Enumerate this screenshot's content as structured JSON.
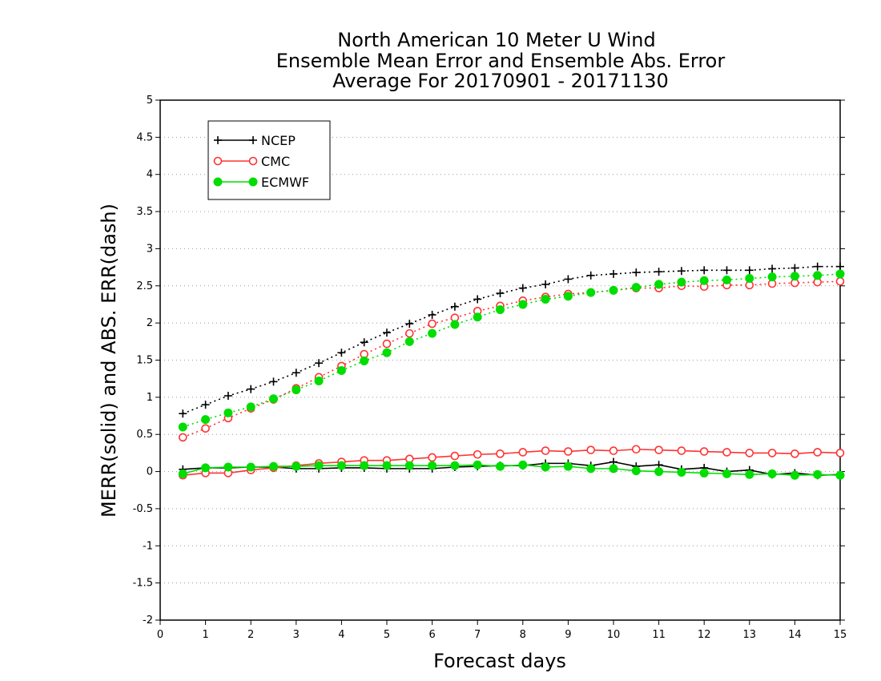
{
  "chart_data": {
    "type": "line",
    "title": [
      "North American 10 Meter U Wind",
      "Ensemble Mean Error and Ensemble Abs. Error",
      "Average For 20170901 - 20171130"
    ],
    "xlabel": "Forecast days",
    "ylabel": "MERR(solid) and ABS. ERR(dash)",
    "xlim": [
      0,
      15
    ],
    "ylim": [
      -2,
      5
    ],
    "xticks": [
      0,
      1,
      2,
      3,
      4,
      5,
      6,
      7,
      8,
      9,
      10,
      11,
      12,
      13,
      14,
      15
    ],
    "xtick_labels": [
      "0",
      "1",
      "2",
      "3",
      "4",
      "5",
      "6",
      "7",
      "8",
      "9",
      "10",
      "11",
      "12",
      "13",
      "14",
      "15"
    ],
    "yticks": [
      -2,
      -1.5,
      -1,
      -0.5,
      0,
      0.5,
      1,
      1.5,
      2,
      2.5,
      3,
      3.5,
      4,
      4.5,
      5
    ],
    "ytick_labels": [
      "-2",
      "-1.5",
      "-1",
      "-0.5",
      "0",
      "0.5",
      "1",
      "1.5",
      "2",
      "2.5",
      "3",
      "3.5",
      "4",
      "4.5",
      "5"
    ],
    "grid": "horizontal dotted",
    "legend_position": "top-left",
    "x": [
      0.5,
      1,
      1.5,
      2,
      2.5,
      3,
      3.5,
      4,
      4.5,
      5,
      5.5,
      6,
      6.5,
      7,
      7.5,
      8,
      8.5,
      9,
      9.5,
      10,
      10.5,
      11,
      11.5,
      12,
      12.5,
      13,
      13.5,
      14,
      14.5,
      15
    ],
    "series": [
      {
        "name": "NCEP",
        "color": "#000000",
        "marker": "plus",
        "merr": [
          0.03,
          0.05,
          0.05,
          0.06,
          0.06,
          0.04,
          0.04,
          0.05,
          0.05,
          0.04,
          0.04,
          0.04,
          0.06,
          0.07,
          0.08,
          0.08,
          0.11,
          0.11,
          0.08,
          0.13,
          0.07,
          0.09,
          0.03,
          0.05,
          0.0,
          0.02,
          -0.04,
          -0.02,
          -0.05,
          -0.04
        ],
        "abs_err": [
          0.78,
          0.9,
          1.02,
          1.11,
          1.21,
          1.33,
          1.46,
          1.6,
          1.74,
          1.87,
          1.99,
          2.11,
          2.22,
          2.32,
          2.4,
          2.47,
          2.52,
          2.59,
          2.64,
          2.66,
          2.68,
          2.69,
          2.7,
          2.71,
          2.71,
          2.71,
          2.73,
          2.74,
          2.76,
          2.76
        ]
      },
      {
        "name": "CMC",
        "color": "#ff3333",
        "marker": "open-circle",
        "merr": [
          -0.05,
          -0.02,
          -0.02,
          0.02,
          0.05,
          0.08,
          0.11,
          0.13,
          0.15,
          0.15,
          0.17,
          0.19,
          0.21,
          0.23,
          0.24,
          0.26,
          0.28,
          0.27,
          0.29,
          0.28,
          0.3,
          0.29,
          0.28,
          0.27,
          0.26,
          0.25,
          0.25,
          0.24,
          0.26,
          0.25
        ],
        "abs_err": [
          0.46,
          0.58,
          0.72,
          0.85,
          0.97,
          1.12,
          1.27,
          1.42,
          1.58,
          1.72,
          1.86,
          1.99,
          2.07,
          2.16,
          2.23,
          2.3,
          2.35,
          2.39,
          2.41,
          2.44,
          2.47,
          2.47,
          2.5,
          2.49,
          2.51,
          2.51,
          2.53,
          2.54,
          2.55,
          2.56
        ]
      },
      {
        "name": "ECMWF",
        "color": "#00dd00",
        "marker": "filled-circle",
        "merr": [
          -0.03,
          0.05,
          0.06,
          0.06,
          0.07,
          0.07,
          0.08,
          0.08,
          0.08,
          0.08,
          0.08,
          0.08,
          0.08,
          0.09,
          0.07,
          0.09,
          0.06,
          0.07,
          0.04,
          0.04,
          0.01,
          0.0,
          -0.01,
          -0.02,
          -0.03,
          -0.04,
          -0.03,
          -0.05,
          -0.04,
          -0.05
        ],
        "abs_err": [
          0.6,
          0.7,
          0.79,
          0.87,
          0.98,
          1.1,
          1.22,
          1.36,
          1.49,
          1.6,
          1.75,
          1.86,
          1.98,
          2.08,
          2.18,
          2.25,
          2.32,
          2.36,
          2.41,
          2.44,
          2.48,
          2.52,
          2.55,
          2.57,
          2.58,
          2.6,
          2.62,
          2.63,
          2.64,
          2.66
        ]
      }
    ]
  }
}
